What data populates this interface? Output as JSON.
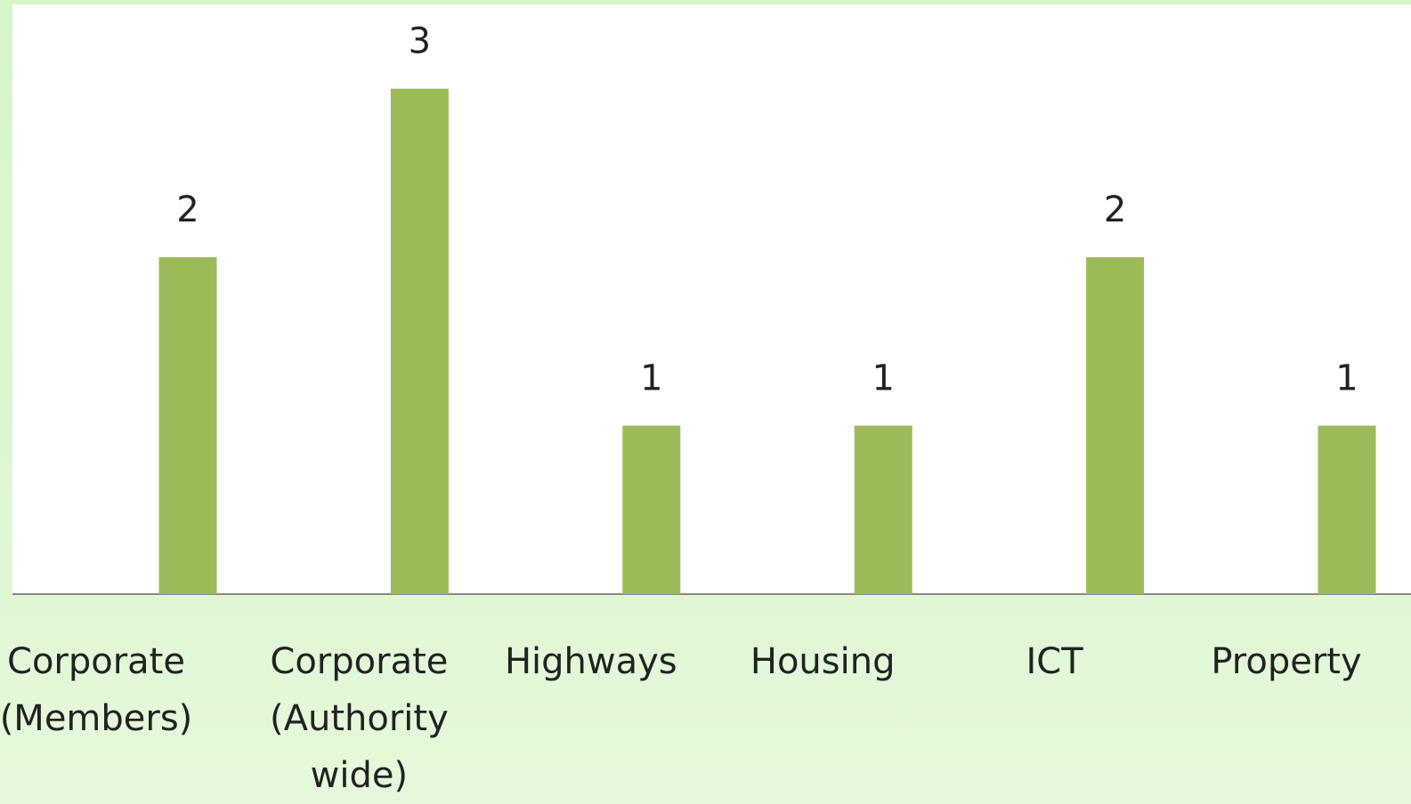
{
  "chart_data": {
    "type": "bar",
    "categories": [
      "Corporate (Members)",
      "Corporate (Authority wide)",
      "Highways",
      "Housing",
      "ICT",
      "Property"
    ],
    "values": [
      2,
      3,
      1,
      1,
      2,
      1
    ],
    "color": "#9bbb59",
    "ylim": [
      0,
      3.5
    ]
  }
}
